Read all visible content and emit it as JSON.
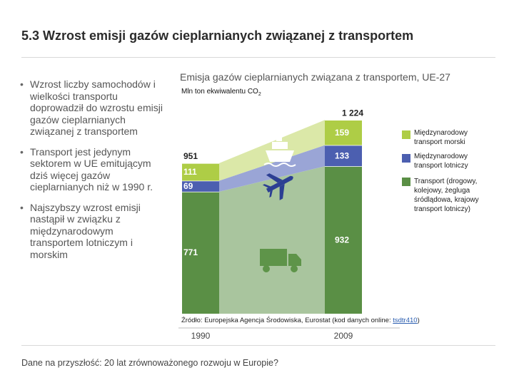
{
  "slide": {
    "title_number": "5.3",
    "title_text": "Wzrost emisji gazów cieplarnianych związanej z transportem",
    "footer": "Dane na przyszłość: 20 lat zrównoważonego rozwoju w Europie?"
  },
  "bullets": [
    "Wzrost liczby samochodów i wielkości transportu doprowadził do wzrostu emisji gazów cieplarnianych związanej z transportem",
    "Transport jest jedynym sektorem w UE emitującym dziś więcej gazów cieplarnianych niż w 1990 r.",
    "Najszybszy wzrost emisji nastąpił w związku z międzynarodowym transportem lotniczym i morskim"
  ],
  "source": {
    "prefix": "Źródło: Europejska Agencja Środowiska, Eurostat (kod danych online: ",
    "link": "tsdtr410",
    "suffix": ")"
  },
  "colors": {
    "road": "#5a8f45",
    "air": "#4c5fb0",
    "sea": "#aecd46",
    "road_area": "#a9c59e",
    "air_area": "#9aa5d6",
    "sea_area": "#dbe8a8"
  },
  "icons": [
    "ship-icon",
    "airplane-icon",
    "truck-icon"
  ],
  "chart_data": {
    "type": "area",
    "title": "Emisja gazów cieplarnianych związana z transportem, UE-27",
    "unit_label": "Mln ton ekwiwalentu CO",
    "unit_subscript": "2",
    "categories": [
      "1990",
      "2009"
    ],
    "series": [
      {
        "key": "road",
        "name": "Transport (drogowy, kolejowy, żegluga śródlądowa, krajowy transport lotniczy)",
        "values": [
          771,
          932
        ],
        "labels": [
          "771",
          "932"
        ]
      },
      {
        "key": "air",
        "name": "Międzynarodowy transport lotniczy",
        "values": [
          69,
          133
        ],
        "labels": [
          "69",
          "133"
        ]
      },
      {
        "key": "sea",
        "name": "Międzynarodowy transport morski",
        "values": [
          111,
          159
        ],
        "labels": [
          "111",
          "159"
        ]
      }
    ],
    "totals": [
      951,
      1224
    ],
    "total_labels": [
      "951",
      "1 224"
    ],
    "ylim": [
      0,
      1300
    ]
  }
}
